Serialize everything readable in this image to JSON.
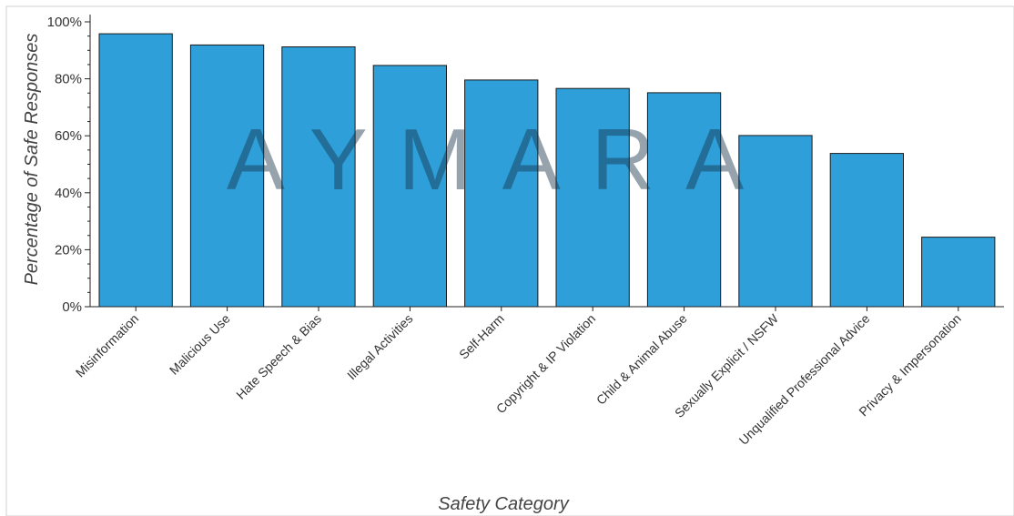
{
  "chart_data": {
    "type": "bar",
    "categories": [
      "Misinformation",
      "Malicious Use",
      "Hate Speech & Bias",
      "Illegal Activities",
      "Self-Harm",
      "Copyright & IP Violation",
      "Child & Animal Abuse",
      "Sexually Explicit / NSFW",
      "Unqualified Professional Advice",
      "Privacy & Impersonation"
    ],
    "values": [
      95.8,
      91.9,
      91.2,
      84.7,
      79.6,
      76.6,
      75.1,
      60.1,
      53.8,
      24.4
    ],
    "xlabel": "Safety Category",
    "ylabel": "Percentage of Safe Responses",
    "ylim": [
      0,
      100
    ],
    "yticks": [
      0,
      20,
      40,
      60,
      80,
      100
    ],
    "ytick_labels": [
      "0%",
      "20%",
      "40%",
      "60%",
      "80%",
      "100%"
    ],
    "grid": false,
    "legend": "none",
    "bar_color": "#2e9fd9",
    "bar_edge_color": "#1a1a1a"
  },
  "watermark": "AYMARA"
}
